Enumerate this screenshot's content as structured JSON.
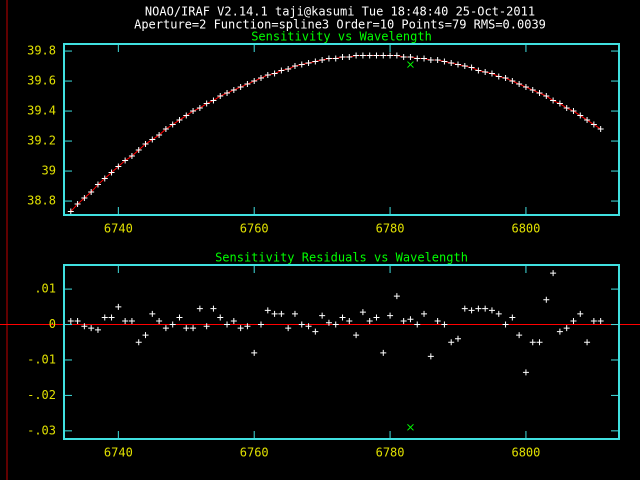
{
  "header": {
    "line1": "NOAO/IRAF V2.14.1 taji@kasumi Tue 18:48:40 25-Oct-2011",
    "line2": "Aperture=2  Function=spline3  Order=10  Points=79  RMS=0.0039"
  },
  "chart_data": [
    {
      "type": "scatter",
      "title": "Sensitivity vs Wavelength",
      "x": [
        6733,
        6734,
        6735,
        6736,
        6737,
        6738,
        6739,
        6740,
        6741,
        6742,
        6743,
        6744,
        6745,
        6746,
        6747,
        6748,
        6749,
        6750,
        6751,
        6752,
        6753,
        6754,
        6755,
        6756,
        6757,
        6758,
        6759,
        6760,
        6761,
        6762,
        6763,
        6764,
        6765,
        6766,
        6767,
        6768,
        6769,
        6770,
        6771,
        6772,
        6773,
        6774,
        6775,
        6776,
        6777,
        6778,
        6779,
        6780,
        6781,
        6782,
        6783,
        6784,
        6785,
        6786,
        6787,
        6788,
        6789,
        6790,
        6791,
        6792,
        6793,
        6794,
        6795,
        6796,
        6797,
        6798,
        6799,
        6800,
        6801,
        6802,
        6803,
        6804,
        6805,
        6806,
        6807,
        6808,
        6809,
        6810,
        6811
      ],
      "series": [
        {
          "color": "#ffffff",
          "line_color": "#ff0000",
          "marker": "+",
          "values": [
            38.73,
            38.78,
            38.82,
            38.86,
            38.91,
            38.95,
            38.99,
            39.03,
            39.07,
            39.1,
            39.14,
            39.18,
            39.21,
            39.24,
            39.28,
            39.31,
            39.34,
            39.37,
            39.4,
            39.42,
            39.45,
            39.47,
            39.5,
            39.52,
            39.54,
            39.56,
            39.58,
            39.6,
            39.62,
            39.64,
            39.65,
            39.67,
            39.68,
            39.7,
            39.71,
            39.72,
            39.73,
            39.74,
            39.75,
            39.75,
            39.76,
            39.76,
            39.77,
            39.77,
            39.77,
            39.77,
            39.77,
            39.77,
            39.77,
            39.76,
            39.76,
            39.75,
            39.75,
            39.74,
            39.74,
            39.73,
            39.72,
            39.71,
            39.7,
            39.69,
            39.67,
            39.66,
            39.65,
            39.63,
            39.62,
            39.6,
            39.58,
            39.56,
            39.54,
            39.52,
            39.5,
            39.47,
            39.45,
            39.42,
            39.4,
            39.37,
            39.34,
            39.31,
            39.28
          ]
        },
        {
          "color": "#00ff00",
          "marker": "x",
          "x": [
            6783
          ],
          "values": [
            39.71
          ]
        }
      ],
      "xlim": [
        6732,
        6813.7
      ],
      "ylim": [
        38.707,
        39.847
      ],
      "xticks": [
        6740,
        6760,
        6780,
        6800
      ],
      "yticks": [
        38.8,
        39,
        39.2,
        39.4,
        39.6,
        39.8
      ]
    },
    {
      "type": "scatter",
      "title": "Sensitivity Residuals vs Wavelength",
      "x": [
        6733,
        6734,
        6735,
        6736,
        6737,
        6738,
        6739,
        6740,
        6741,
        6742,
        6743,
        6744,
        6745,
        6746,
        6747,
        6748,
        6749,
        6750,
        6751,
        6752,
        6753,
        6754,
        6755,
        6756,
        6757,
        6758,
        6759,
        6760,
        6761,
        6762,
        6763,
        6764,
        6765,
        6766,
        6767,
        6768,
        6769,
        6770,
        6771,
        6772,
        6773,
        6774,
        6775,
        6776,
        6777,
        6778,
        6779,
        6780,
        6781,
        6782,
        6783,
        6784,
        6785,
        6786,
        6787,
        6788,
        6789,
        6790,
        6791,
        6792,
        6793,
        6794,
        6795,
        6796,
        6797,
        6798,
        6799,
        6800,
        6801,
        6802,
        6803,
        6804,
        6805,
        6806,
        6807,
        6808,
        6809,
        6810,
        6811
      ],
      "series": [
        {
          "color": "#ffffff",
          "marker": "+",
          "values": [
            0.001,
            0.001,
            -0.0005,
            -0.001,
            -0.0015,
            0.002,
            0.002,
            0.005,
            0.001,
            0.001,
            -0.005,
            -0.003,
            0.003,
            0.001,
            -0.001,
            0.0,
            0.002,
            -0.001,
            -0.001,
            0.0045,
            -0.0005,
            0.0045,
            0.002,
            0.0,
            0.001,
            -0.001,
            -0.0005,
            -0.008,
            0.0,
            0.004,
            0.003,
            0.003,
            -0.001,
            0.003,
            0.0,
            -0.0005,
            -0.002,
            0.0025,
            0.0005,
            0.0,
            0.002,
            0.001,
            -0.003,
            0.0035,
            0.001,
            0.002,
            -0.008,
            0.0025,
            0.008,
            0.001,
            0.0015,
            0.0,
            0.003,
            -0.009,
            0.001,
            0.0,
            -0.005,
            -0.004,
            0.0045,
            0.004,
            0.0045,
            0.0045,
            0.004,
            0.003,
            0.0,
            0.002,
            -0.003,
            -0.0135,
            -0.005,
            -0.005,
            0.007,
            0.0145,
            -0.002,
            -0.001,
            0.001,
            0.003,
            -0.005,
            0.001,
            0.001
          ]
        },
        {
          "color": "#00ff00",
          "marker": "x",
          "x": [
            6783
          ],
          "values": [
            -0.029
          ]
        }
      ],
      "zero_line": true,
      "zero_line_color": "#ff0000",
      "xlim": [
        6732,
        6813.7
      ],
      "ylim": [
        -0.0323,
        0.0168
      ],
      "xticks": [
        6740,
        6760,
        6780,
        6800
      ],
      "yticks": [
        {
          "value": -0.03,
          "label": "-.03"
        },
        {
          "value": -0.02,
          "label": "-.02"
        },
        {
          "value": -0.01,
          "label": "-.01"
        },
        0,
        {
          "value": 0.01,
          "label": ".01"
        }
      ]
    }
  ]
}
